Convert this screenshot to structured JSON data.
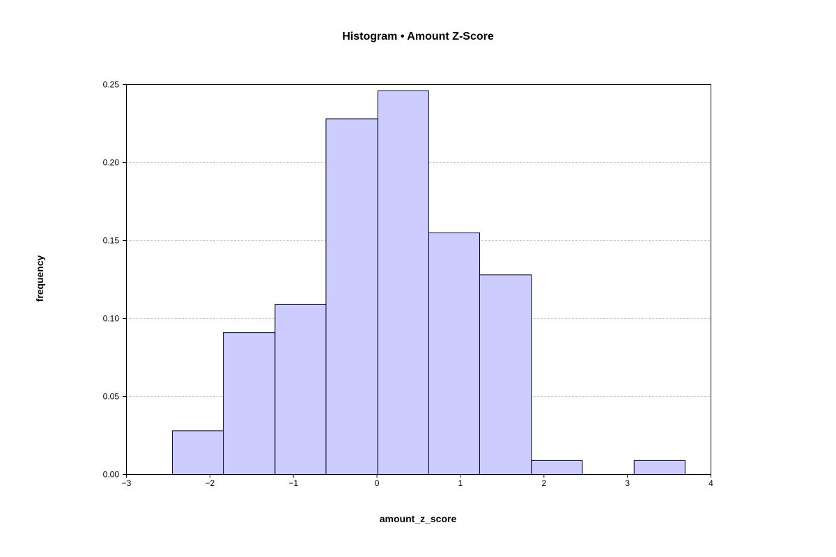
{
  "chart_data": {
    "type": "bar",
    "title": "Histogram • Amount Z-Score",
    "xlabel": "amount_z_score",
    "ylabel": "frequency",
    "xlim": [
      -3,
      4
    ],
    "ylim": [
      0,
      0.25
    ],
    "xticks": [
      -3,
      -2,
      -1,
      0,
      1,
      2,
      3,
      4
    ],
    "xtick_labels": [
      "−3",
      "−2",
      "−1",
      "0",
      "1",
      "2",
      "3",
      "4"
    ],
    "yticks": [
      0,
      0.05,
      0.1,
      0.15,
      0.2,
      0.25
    ],
    "ytick_labels": [
      "0.00",
      "0.05",
      "0.10",
      "0.15",
      "0.20",
      "0.25"
    ],
    "grid": "horizontal dashed",
    "bar_color": "#ccccff",
    "bar_edge_color": "#000033",
    "bins": [
      {
        "x0": -2.45,
        "x1": -1.84,
        "value": 0.028
      },
      {
        "x0": -1.84,
        "x1": -1.22,
        "value": 0.091
      },
      {
        "x0": -1.22,
        "x1": -0.61,
        "value": 0.109
      },
      {
        "x0": -0.61,
        "x1": 0.01,
        "value": 0.228
      },
      {
        "x0": 0.01,
        "x1": 0.62,
        "value": 0.246
      },
      {
        "x0": 0.62,
        "x1": 1.23,
        "value": 0.155
      },
      {
        "x0": 1.23,
        "x1": 1.85,
        "value": 0.128
      },
      {
        "x0": 1.85,
        "x1": 2.46,
        "value": 0.009
      },
      {
        "x0": 2.46,
        "x1": 3.08,
        "value": 0.0
      },
      {
        "x0": 3.08,
        "x1": 3.69,
        "value": 0.009
      }
    ]
  }
}
